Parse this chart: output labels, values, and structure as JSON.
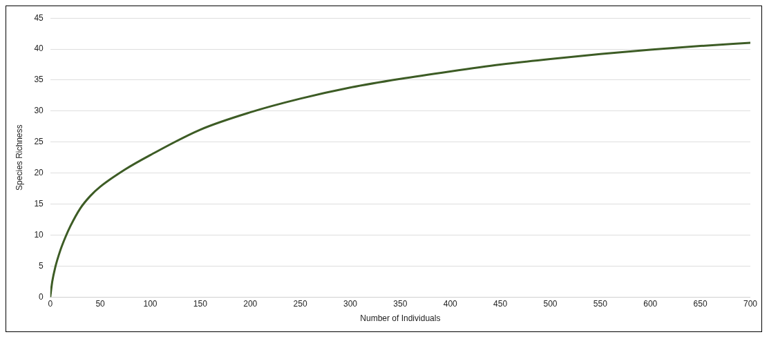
{
  "chart_data": {
    "type": "line",
    "xlabel": "Number of Individuals",
    "ylabel": "Species Richness",
    "x": [
      0,
      2,
      5,
      10,
      15,
      20,
      30,
      40,
      50,
      75,
      100,
      150,
      200,
      250,
      300,
      350,
      400,
      450,
      500,
      550,
      600,
      650,
      700
    ],
    "series": [
      {
        "color": "#3d5c25",
        "values": [
          0,
          2.5,
          4.8,
          7.5,
          9.6,
          11.4,
          14.3,
          16.3,
          17.8,
          20.6,
          22.9,
          27,
          29.8,
          32,
          33.8,
          35.2,
          36.4,
          37.5,
          38.4,
          39.2,
          39.9,
          40.5,
          41
        ]
      }
    ],
    "xlim": [
      0,
      700
    ],
    "xticks": [
      0,
      50,
      100,
      150,
      200,
      250,
      300,
      350,
      400,
      450,
      500,
      550,
      600,
      650,
      700
    ],
    "ylim": [
      0,
      45
    ],
    "yticks": [
      0,
      5,
      10,
      15,
      20,
      25,
      30,
      35,
      40,
      45
    ],
    "grid": "y",
    "legend": false,
    "marker": "none",
    "line_style": "solid"
  }
}
